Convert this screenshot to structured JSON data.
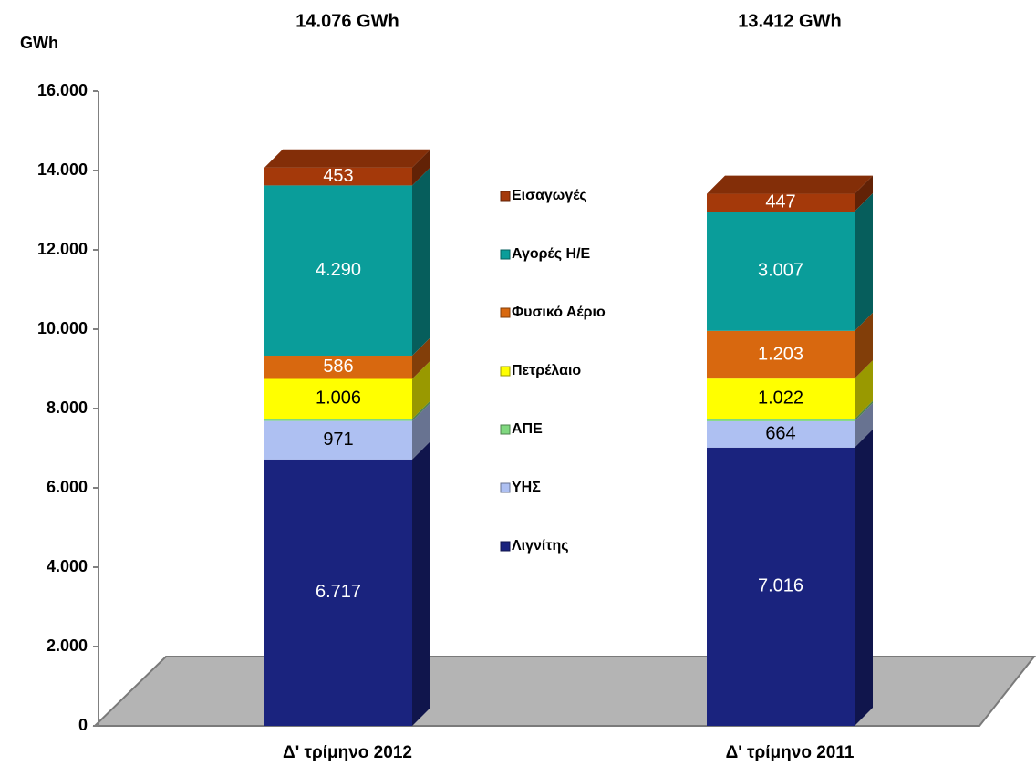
{
  "chart_data": {
    "type": "stacked-bar-3d",
    "y_axis_label": "GWh",
    "categories": [
      "Δ' τρίμηνο 2012",
      "Δ' τρίμηνο 2011"
    ],
    "series": [
      {
        "name": "Λιγνίτης",
        "color": "#1a237e",
        "values": [
          6717,
          7016
        ],
        "value_labels": [
          "6.717",
          "7.016"
        ]
      },
      {
        "name": "ΥΗΣ",
        "color": "#aec0f2",
        "values": [
          971,
          664
        ],
        "value_labels": [
          "971",
          "664"
        ]
      },
      {
        "name": "ΑΠΕ",
        "color": "#80d880",
        "values": [
          53,
          53
        ]
      },
      {
        "name": "Πετρέλαιο",
        "color": "#ffff00",
        "values": [
          1006,
          1022
        ],
        "value_labels": [
          "1.006",
          "1.022"
        ]
      },
      {
        "name": "Φυσικό Αέριο",
        "color": "#d8680f",
        "values": [
          586,
          1203
        ],
        "value_labels": [
          "586",
          "1.203"
        ]
      },
      {
        "name": "Αγορές Η/Ε",
        "color": "#0a9d9a",
        "values": [
          4290,
          3007
        ],
        "value_labels": [
          "4.290",
          "3.007"
        ]
      },
      {
        "name": "Εισαγωγές",
        "color": "#a4390a",
        "values": [
          453,
          447
        ]
      }
    ],
    "totals": {
      "values": [
        14076,
        13412
      ],
      "value_labels": [
        "14.076 GWh",
        "13.412 GWh"
      ]
    },
    "ylim": [
      0,
      16000
    ],
    "yticks": [
      0,
      {
        "value": 2000,
        "label": "2.000"
      },
      {
        "value": 4000,
        "label": "4.000"
      },
      {
        "value": 6000,
        "label": "6.000"
      },
      {
        "value": 8000,
        "label": "8.000"
      },
      {
        "value": 10000,
        "label": "10.000"
      },
      {
        "value": 12000,
        "label": "12.000"
      },
      {
        "value": 14000,
        "label": "14.000"
      },
      {
        "value": 16000,
        "label": "16.000"
      }
    ],
    "legend": "center"
  }
}
